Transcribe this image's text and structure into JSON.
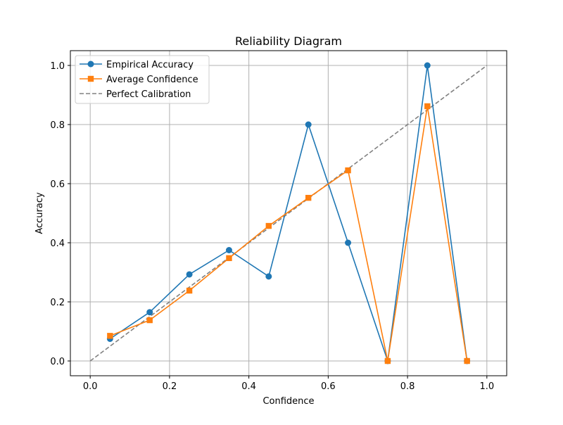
{
  "chart_data": {
    "type": "line",
    "title": "Reliability Diagram",
    "xlabel": "Confidence",
    "ylabel": "Accuracy",
    "xlim": [
      -0.05,
      1.05
    ],
    "ylim": [
      -0.05,
      1.05
    ],
    "xticks": [
      0.0,
      0.2,
      0.4,
      0.6,
      0.8,
      1.0
    ],
    "yticks": [
      0.0,
      0.2,
      0.4,
      0.6,
      0.8,
      1.0
    ],
    "xtick_labels": [
      "0.0",
      "0.2",
      "0.4",
      "0.6",
      "0.8",
      "1.0"
    ],
    "ytick_labels": [
      "0.0",
      "0.2",
      "0.4",
      "0.6",
      "0.8",
      "1.0"
    ],
    "grid": true,
    "legend_position": "upper-left",
    "x": [
      0.05,
      0.15,
      0.25,
      0.35,
      0.45,
      0.55,
      0.65,
      0.75,
      0.85,
      0.95
    ],
    "series": [
      {
        "name": "Empirical Accuracy",
        "color": "#1f77b4",
        "marker": "circle",
        "style": "solid",
        "values": [
          0.075,
          0.165,
          0.293,
          0.375,
          0.286,
          0.8,
          0.4,
          0.0,
          1.0,
          0.0
        ]
      },
      {
        "name": "Average Confidence",
        "color": "#ff7f0e",
        "marker": "square",
        "style": "solid",
        "values": [
          0.085,
          0.138,
          0.238,
          0.348,
          0.457,
          0.552,
          0.645,
          0.0,
          0.862,
          0.0
        ]
      },
      {
        "name": "Perfect Calibration",
        "color": "#808080",
        "marker": "none",
        "style": "dashed",
        "x": [
          0.0,
          1.0
        ],
        "values": [
          0.0,
          1.0
        ]
      }
    ]
  }
}
